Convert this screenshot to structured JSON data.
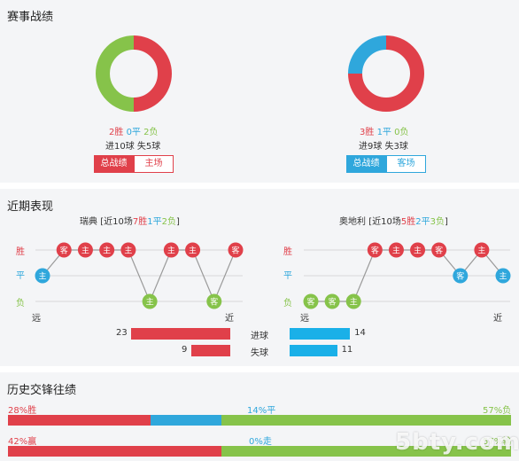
{
  "record": {
    "title": "赛事战绩",
    "left": {
      "win": "2胜",
      "draw": "0平",
      "loss": "2负",
      "goals": "进10球 失5球",
      "tab_active": "总战绩",
      "tab_inactive": "主场",
      "donut": {
        "win": 2,
        "draw": 0,
        "loss": 2
      }
    },
    "right": {
      "win": "3胜",
      "draw": "1平",
      "loss": "0负",
      "goals": "进9球 失3球",
      "tab_active": "总战绩",
      "tab_inactive": "客场",
      "donut": {
        "win": 3,
        "draw": 1,
        "loss": 0
      }
    }
  },
  "recent": {
    "title": "近期表现",
    "left_header": {
      "team": "瑞典",
      "pre": "[近10场",
      "win": "7胜",
      "draw": "1平",
      "loss": "2负",
      "post": "]"
    },
    "right_header": {
      "team": "奥地利",
      "pre": "[近10场",
      "win": "5胜",
      "draw": "2平",
      "loss": "3负",
      "post": "]"
    },
    "row_labels": {
      "win": "胜",
      "draw": "平",
      "loss": "负"
    },
    "far": "远",
    "near": "近",
    "left_form": [
      {
        "result": "D",
        "venue": "主"
      },
      {
        "result": "W",
        "venue": "客"
      },
      {
        "result": "W",
        "venue": "主"
      },
      {
        "result": "W",
        "venue": "主"
      },
      {
        "result": "W",
        "venue": "主"
      },
      {
        "result": "L",
        "venue": "主"
      },
      {
        "result": "W",
        "venue": "主"
      },
      {
        "result": "W",
        "venue": "主"
      },
      {
        "result": "L",
        "venue": "客"
      },
      {
        "result": "W",
        "venue": "客"
      }
    ],
    "right_form": [
      {
        "result": "L",
        "venue": "客"
      },
      {
        "result": "L",
        "venue": "客"
      },
      {
        "result": "L",
        "venue": "主"
      },
      {
        "result": "W",
        "venue": "客"
      },
      {
        "result": "W",
        "venue": "主"
      },
      {
        "result": "W",
        "venue": "主"
      },
      {
        "result": "W",
        "venue": "客"
      },
      {
        "result": "D",
        "venue": "客"
      },
      {
        "result": "W",
        "venue": "主"
      },
      {
        "result": "D",
        "venue": "主"
      }
    ],
    "goals_scored": {
      "label": "进球",
      "left": 23,
      "right": 14
    },
    "goals_conceded": {
      "label": "失球",
      "left": 9,
      "right": 11
    }
  },
  "history": {
    "title": "历史交锋往绩",
    "row1": {
      "left": "28%胜",
      "mid": "14%平",
      "right": "57%负",
      "a": 28,
      "b": 14,
      "c": 57
    },
    "row2": {
      "left": "42%赢",
      "mid": "0%走",
      "right": "57%输",
      "a": 42,
      "b": 0,
      "c": 57
    }
  },
  "watermark": "5bty.com",
  "colors": {
    "win": "#e0404a",
    "draw": "#2fa7dc",
    "loss": "#86c34a"
  }
}
